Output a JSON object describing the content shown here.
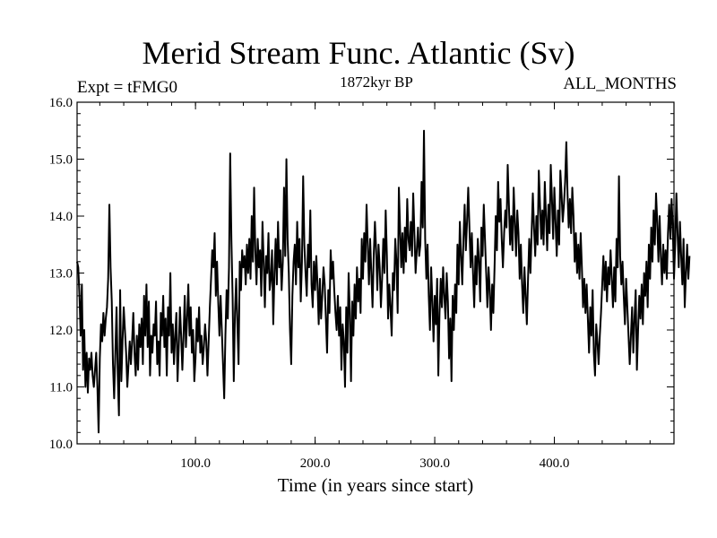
{
  "chart_data": {
    "type": "line",
    "title": "Merid Stream Func. Atlantic (Sv)",
    "subtitle_left": "Expt = tFMG0",
    "subtitle_center": "1872kyr BP",
    "subtitle_right": "ALL_MONTHS",
    "xlabel": "Time (in years since start)",
    "ylabel": "",
    "xlim": [
      1,
      500
    ],
    "ylim": [
      10.0,
      16.0
    ],
    "xticks": [
      100,
      200,
      300,
      400
    ],
    "xtick_labels": [
      "100.0",
      "200.0",
      "300.0",
      "400.0"
    ],
    "yticks": [
      10,
      11,
      12,
      13,
      14,
      15,
      16
    ],
    "ytick_labels": [
      "10.0",
      "11.0",
      "12.0",
      "13.0",
      "14.0",
      "15.0",
      "16.0"
    ],
    "series": [
      {
        "name": "Merid Stream Func. Atlantic",
        "x_start": 1,
        "x_step": 1,
        "values": [
          13.2,
          13.1,
          12.6,
          11.9,
          12.8,
          11.3,
          12.0,
          11.0,
          11.6,
          10.9,
          11.5,
          11.3,
          11.6,
          11.2,
          11.0,
          11.3,
          11.6,
          11.0,
          10.2,
          11.5,
          12.1,
          11.8,
          12.3,
          11.9,
          12.2,
          12.4,
          12.9,
          14.2,
          13.1,
          12.5,
          11.4,
          10.8,
          11.6,
          12.4,
          11.2,
          10.5,
          12.7,
          11.1,
          11.8,
          12.4,
          12.0,
          11.6,
          11.0,
          11.4,
          11.8,
          11.4,
          11.8,
          12.3,
          11.6,
          11.2,
          11.9,
          11.3,
          12.1,
          11.7,
          12.2,
          11.4,
          12.6,
          11.9,
          12.8,
          11.7,
          12.5,
          11.2,
          11.9,
          11.6,
          12.1,
          11.9,
          12.5,
          11.4,
          11.8,
          11.2,
          12.3,
          11.9,
          12.6,
          11.7,
          12.2,
          11.2,
          12.4,
          11.9,
          13.0,
          11.6,
          12.1,
          11.4,
          11.9,
          12.3,
          11.1,
          11.7,
          12.4,
          11.9,
          11.3,
          11.9,
          12.6,
          11.7,
          12.2,
          12.8,
          11.9,
          12.4,
          11.6,
          12.0,
          11.1,
          11.5,
          12.2,
          11.8,
          12.4,
          11.6,
          11.9,
          11.4,
          11.7,
          12.1,
          11.8,
          11.2,
          11.8,
          12.4,
          12.9,
          13.4,
          13.1,
          13.7,
          12.6,
          13.2,
          12.5,
          11.9,
          12.6,
          12.0,
          11.4,
          10.8,
          11.9,
          12.7,
          12.2,
          13.1,
          15.1,
          13.6,
          12.6,
          11.1,
          12.3,
          12.9,
          12.1,
          11.4,
          13.2,
          12.7,
          13.4,
          13.1,
          13.3,
          12.8,
          13.5,
          13.0,
          13.6,
          12.9,
          14.0,
          13.2,
          14.5,
          13.4,
          12.8,
          13.6,
          13.1,
          13.4,
          12.6,
          13.9,
          13.2,
          12.4,
          13.3,
          13.0,
          13.7,
          12.7,
          12.9,
          13.4,
          12.1,
          13.0,
          13.6,
          12.8,
          13.9,
          13.1,
          13.4,
          12.7,
          13.2,
          14.5,
          13.3,
          15.0,
          13.6,
          13.0,
          12.0,
          11.4,
          12.6,
          13.2,
          13.5,
          12.8,
          13.9,
          13.1,
          13.6,
          12.5,
          13.2,
          14.7,
          13.5,
          13.0,
          12.6,
          13.5,
          13.1,
          14.1,
          12.8,
          12.4,
          13.2,
          12.7,
          13.3,
          12.8,
          12.1,
          12.9,
          12.2,
          12.6,
          13.1,
          12.8,
          12.2,
          11.6,
          12.7,
          12.3,
          13.4,
          12.9,
          13.2,
          12.7,
          12.3,
          12.0,
          12.6,
          11.9,
          12.4,
          11.3,
          12.1,
          11.8,
          11.0,
          12.4,
          11.6,
          13.0,
          12.3,
          11.1,
          12.5,
          11.9,
          12.8,
          12.2,
          13.1,
          12.5,
          12.9,
          12.3,
          13.6,
          12.9,
          13.7,
          13.2,
          14.2,
          13.5,
          12.8,
          13.6,
          13.0,
          12.4,
          13.3,
          13.9,
          13.4,
          12.7,
          13.5,
          13.1,
          12.4,
          12.9,
          13.6,
          13.0,
          14.1,
          13.3,
          12.2,
          12.8,
          12.4,
          11.9,
          13.0,
          12.7,
          13.6,
          13.2,
          12.3,
          14.5,
          13.8,
          13.1,
          13.7,
          13.0,
          13.8,
          13.2,
          14.3,
          13.6,
          13.4,
          13.9,
          13.3,
          14.4,
          13.7,
          13.0,
          13.4,
          13.8,
          13.3,
          13.5,
          14.6,
          13.8,
          15.5,
          13.6,
          12.9,
          13.5,
          12.6,
          12.0,
          13.1,
          12.5,
          11.8,
          12.6,
          12.1,
          12.9,
          11.2,
          12.3,
          12.9,
          12.4,
          13.1,
          12.6,
          12.2,
          13.0,
          12.5,
          11.5,
          12.2,
          11.1,
          12.6,
          12.0,
          12.8,
          12.3,
          13.5,
          12.8,
          13.9,
          13.3,
          12.8,
          13.6,
          14.2,
          13.4,
          13.9,
          14.5,
          13.8,
          13.1,
          13.7,
          13.0,
          12.4,
          13.3,
          12.8,
          13.6,
          13.2,
          12.5,
          13.8,
          13.3,
          14.2,
          13.6,
          13.0,
          12.4,
          13.1,
          12.7,
          12.0,
          12.8,
          12.3,
          13.1,
          14.0,
          13.4,
          14.6,
          13.9,
          14.3,
          13.6,
          13.1,
          13.7,
          14.1,
          13.8,
          14.9,
          14.2,
          13.5,
          14.0,
          13.4,
          14.5,
          13.9,
          13.3,
          14.1,
          13.7,
          12.9,
          13.5,
          12.8,
          12.3,
          13.1,
          12.6,
          12.1,
          12.9,
          13.6,
          13.0,
          13.7,
          14.4,
          13.8,
          13.3,
          14.0,
          13.5,
          14.8,
          14.2,
          13.6,
          14.1,
          13.5,
          14.6,
          14.0,
          13.4,
          14.2,
          13.7,
          14.9,
          14.3,
          13.6,
          14.5,
          13.9,
          13.3,
          14.1,
          13.5,
          14.8,
          14.4,
          13.9,
          14.2,
          14.6,
          15.3,
          14.4,
          13.8,
          14.3,
          13.7,
          14.5,
          14.0,
          13.2,
          13.7,
          13.0,
          13.5,
          12.9,
          13.7,
          13.1,
          12.4,
          12.9,
          12.3,
          12.8,
          12.2,
          11.6,
          12.4,
          11.9,
          12.7,
          11.6,
          11.2,
          12.1,
          11.8,
          11.4,
          11.9,
          12.3,
          12.8,
          13.3,
          12.7,
          13.2,
          12.5,
          13.1,
          12.8,
          13.4,
          12.9,
          12.4,
          13.1,
          12.5,
          13.6,
          13.1,
          14.7,
          13.3,
          12.8,
          13.2,
          12.6,
          12.1,
          12.9,
          12.4,
          11.9,
          11.4,
          11.9,
          12.4,
          11.6,
          12.2,
          12.7,
          11.3,
          12.0,
          12.6,
          12.2,
          12.8,
          12.1,
          13.0,
          12.6,
          13.2,
          12.4,
          13.5,
          12.9,
          13.8,
          13.2,
          14.1,
          13.5,
          14.4,
          13.9,
          13.2,
          14.0,
          13.3,
          12.8,
          13.5,
          13.0,
          13.4,
          12.9,
          13.7,
          14.2,
          13.6,
          14.3,
          13.8,
          12.9,
          13.5,
          14.4,
          13.7,
          13.1,
          13.9,
          13.3,
          12.8,
          13.6,
          12.4,
          13.0,
          13.5,
          12.9,
          13.3
        ]
      }
    ]
  }
}
